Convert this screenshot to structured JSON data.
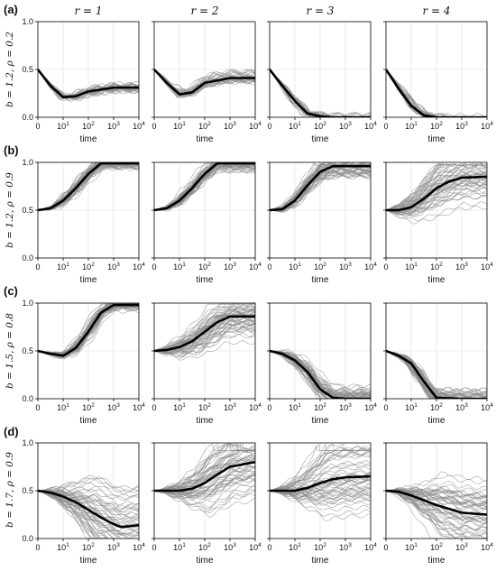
{
  "chart_data": {
    "type": "line",
    "col_titles": [
      "r = 1",
      "r = 2",
      "r = 3",
      "r = 4"
    ],
    "rows": [
      {
        "letter": "(a)",
        "label": "b = 1.2,  ρ = 0.2"
      },
      {
        "letter": "(b)",
        "label": "b = 1.2,  ρ = 0.9"
      },
      {
        "letter": "(c)",
        "label": "b = 1.5,  ρ = 0.8"
      },
      {
        "letter": "(d)",
        "label": "b = 1.7,  ρ = 0.9"
      }
    ],
    "xlabel": "time",
    "x_ticks": [
      {
        "base": "0",
        "exp": ""
      },
      {
        "base": "10",
        "exp": "1"
      },
      {
        "base": "10",
        "exp": "2"
      },
      {
        "base": "10",
        "exp": "3"
      },
      {
        "base": "10",
        "exp": "4"
      }
    ],
    "y_ticks": [
      "0.0",
      "0.5",
      "1.0"
    ],
    "ylim": [
      0,
      1
    ],
    "grid": true,
    "colors": {
      "trajectory": "#8c8c8c",
      "mean": "#000000",
      "grid": "#dddddd",
      "axes": "#000000"
    },
    "mean_curves": [
      [
        {
          "x": [
            0,
            0.5,
            1,
            1.5,
            2,
            3,
            4
          ],
          "y": [
            0.5,
            0.33,
            0.21,
            0.22,
            0.27,
            0.31,
            0.31
          ]
        },
        {
          "x": [
            0,
            0.5,
            1,
            1.5,
            2,
            3,
            4
          ],
          "y": [
            0.5,
            0.36,
            0.24,
            0.26,
            0.36,
            0.41,
            0.41
          ]
        },
        {
          "x": [
            0,
            0.5,
            1,
            1.5,
            2,
            2.5,
            3,
            4
          ],
          "y": [
            0.5,
            0.33,
            0.17,
            0.04,
            0.01,
            0,
            0,
            0
          ]
        },
        {
          "x": [
            0,
            0.5,
            1,
            1.5,
            2,
            3,
            4
          ],
          "y": [
            0.5,
            0.3,
            0.12,
            0.02,
            0,
            0,
            0
          ]
        }
      ],
      [
        {
          "x": [
            0,
            0.5,
            1,
            1.5,
            2,
            2.5,
            3,
            4
          ],
          "y": [
            0.5,
            0.52,
            0.6,
            0.73,
            0.88,
            0.99,
            0.99,
            0.99
          ]
        },
        {
          "x": [
            0,
            0.5,
            1,
            1.5,
            2,
            2.5,
            3,
            4
          ],
          "y": [
            0.5,
            0.52,
            0.6,
            0.73,
            0.88,
            0.99,
            0.99,
            0.99
          ]
        },
        {
          "x": [
            0,
            0.5,
            1,
            1.5,
            2,
            2.5,
            3,
            4
          ],
          "y": [
            0.5,
            0.51,
            0.6,
            0.76,
            0.9,
            0.96,
            0.96,
            0.96
          ]
        },
        {
          "x": [
            0,
            0.5,
            1,
            1.5,
            2,
            2.5,
            3,
            4
          ],
          "y": [
            0.5,
            0.5,
            0.53,
            0.62,
            0.73,
            0.8,
            0.84,
            0.85
          ]
        }
      ],
      [
        {
          "x": [
            0,
            0.5,
            1,
            1.5,
            2,
            2.5,
            3,
            4
          ],
          "y": [
            0.5,
            0.47,
            0.45,
            0.53,
            0.7,
            0.9,
            0.98,
            0.98
          ]
        },
        {
          "x": [
            0,
            0.5,
            1,
            1.5,
            2,
            2.5,
            3,
            4
          ],
          "y": [
            0.5,
            0.51,
            0.54,
            0.6,
            0.7,
            0.8,
            0.86,
            0.86
          ]
        },
        {
          "x": [
            0,
            0.5,
            1,
            1.5,
            2,
            2.5,
            3,
            4
          ],
          "y": [
            0.5,
            0.47,
            0.4,
            0.28,
            0.1,
            0.01,
            0,
            0
          ]
        },
        {
          "x": [
            0,
            0.5,
            1,
            1.5,
            2,
            3,
            4
          ],
          "y": [
            0.5,
            0.45,
            0.37,
            0.18,
            0.01,
            0,
            0
          ]
        }
      ],
      [
        {
          "x": [
            0,
            0.5,
            1,
            1.5,
            2,
            2.5,
            3,
            3.3,
            4
          ],
          "y": [
            0.5,
            0.48,
            0.44,
            0.38,
            0.3,
            0.22,
            0.15,
            0.12,
            0.14
          ]
        },
        {
          "x": [
            0,
            0.5,
            1,
            1.5,
            2,
            2.5,
            3,
            4
          ],
          "y": [
            0.5,
            0.5,
            0.5,
            0.52,
            0.58,
            0.67,
            0.75,
            0.8
          ]
        },
        {
          "x": [
            0,
            0.5,
            1,
            1.5,
            2,
            2.5,
            3,
            4
          ],
          "y": [
            0.5,
            0.5,
            0.5,
            0.53,
            0.58,
            0.62,
            0.64,
            0.65
          ]
        },
        {
          "x": [
            0,
            0.5,
            1,
            1.5,
            2,
            2.5,
            3,
            4
          ],
          "y": [
            0.5,
            0.49,
            0.45,
            0.4,
            0.35,
            0.31,
            0.27,
            0.25
          ]
        }
      ]
    ]
  }
}
